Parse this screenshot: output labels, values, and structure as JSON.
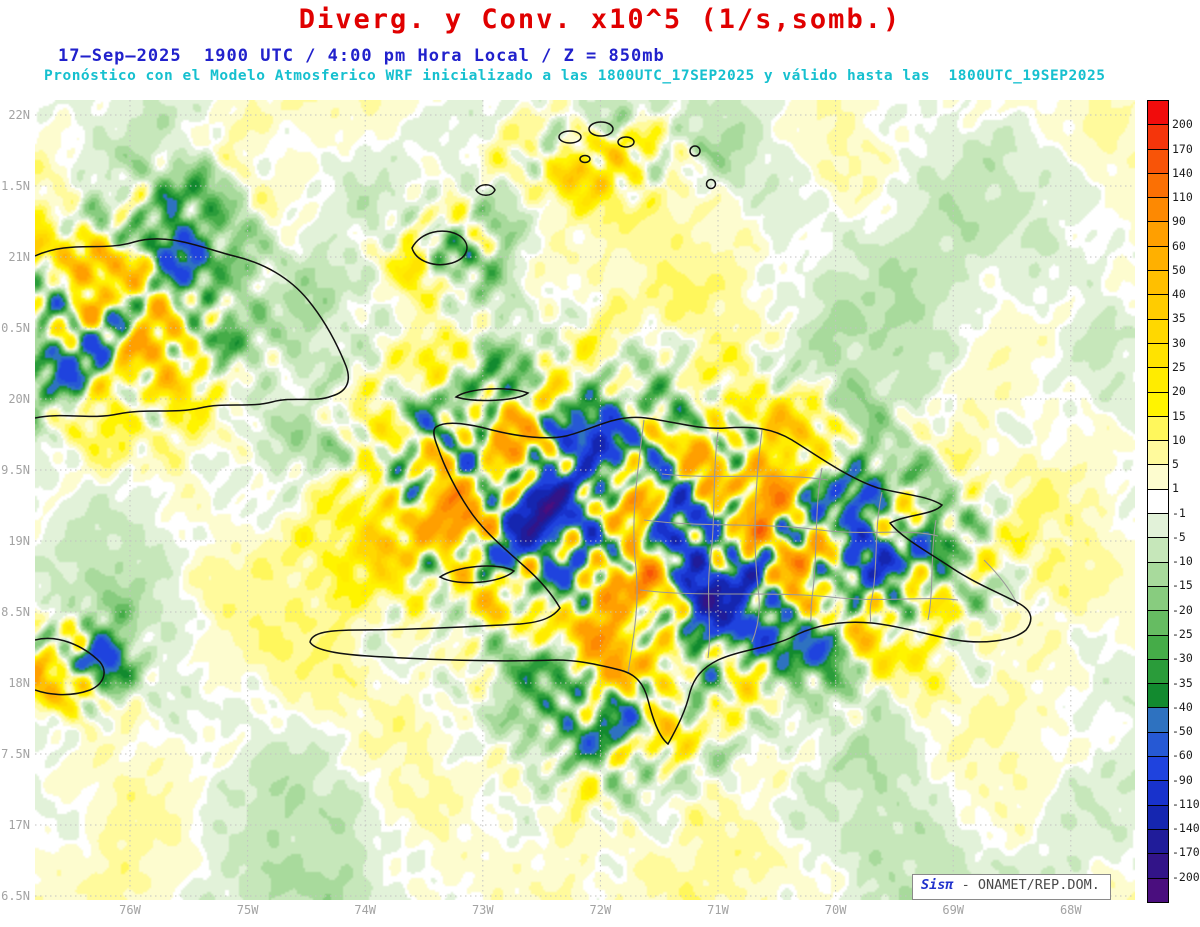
{
  "header": {
    "title": "Diverg. y Conv. x10^5 (1/s,somb.)",
    "title_color": "#e00000",
    "subtitle1": "17–Sep–2025  1900 UTC / 4:00 pm Hora Local / Z = 850mb",
    "subtitle1_color": "#2121cc",
    "subtitle2": "Pronóstico con el Modelo Atmosferico WRF inicializado a las 1800UTC_17SEP2025 y válido hasta las  1800UTC_19SEP2025",
    "subtitle2_color": "#16c0cf"
  },
  "map": {
    "x_ticks": [
      "76W",
      "75W",
      "74W",
      "73W",
      "72W",
      "71W",
      "70W",
      "69W",
      "68W"
    ],
    "y_ticks": [
      "22N",
      "1.5N",
      "21N",
      "0.5N",
      "20N",
      "9.5N",
      "19N",
      "8.5N",
      "18N",
      "7.5N",
      "17N",
      "6.5N"
    ],
    "attribution": {
      "brand": "Sisπ",
      "org": "- ONAMET/REP.DOM."
    }
  },
  "colorbar": {
    "labels": [
      200,
      170,
      140,
      110,
      90,
      60,
      50,
      40,
      35,
      30,
      25,
      20,
      15,
      10,
      5,
      1,
      -1,
      -5,
      -10,
      -15,
      -20,
      -25,
      -30,
      -35,
      -40,
      -50,
      -60,
      -90,
      -110,
      -140,
      -170,
      -200
    ],
    "colors_top_to_bottom": [
      "#f10c0c",
      "#f5350b",
      "#f85408",
      "#fb7004",
      "#fd8902",
      "#ff9f00",
      "#ffb000",
      "#ffbf00",
      "#ffcc00",
      "#ffd800",
      "#ffe300",
      "#ffec00",
      "#fff400",
      "#fff75c",
      "#fffa9c",
      "#fdfccf",
      "#ffffff",
      "#e2f2d9",
      "#c6e7ba",
      "#a8da9c",
      "#88cc7f",
      "#66bc62",
      "#45ac48",
      "#2a9c3a",
      "#128a2f",
      "#2e72c0",
      "#2659d4",
      "#1f43de",
      "#1832cc",
      "#1526b0",
      "#201c9a",
      "#321488",
      "#4a0e7e"
    ],
    "units": "x10^5 (1/s)"
  }
}
